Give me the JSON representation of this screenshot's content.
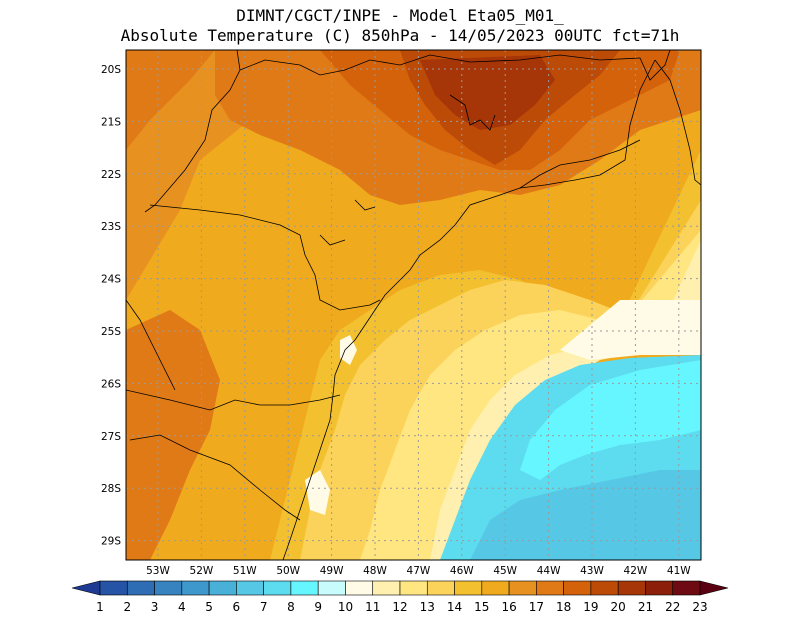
{
  "header": {
    "line1": "DIMNT/CGCT/INPE -  Model Eta05_M01_",
    "line2": "Absolute Temperature (C) 850hPa -  14/05/2023 00UTC fct=71h"
  },
  "axes": {
    "lat_labels": [
      "20S",
      "21S",
      "22S",
      "23S",
      "24S",
      "25S",
      "26S",
      "27S",
      "28S",
      "29S"
    ],
    "lon_labels": [
      "53W",
      "52W",
      "51W",
      "50W",
      "49W",
      "48W",
      "47W",
      "46W",
      "45W",
      "44W",
      "43W",
      "42W",
      "41W"
    ]
  },
  "colorbar": {
    "labels": [
      "1",
      "2",
      "3",
      "4",
      "5",
      "6",
      "7",
      "8",
      "9",
      "10",
      "11",
      "12",
      "13",
      "14",
      "15",
      "16",
      "17",
      "18",
      "19",
      "20",
      "21",
      "22",
      "23"
    ],
    "colors": [
      "#1f3a93",
      "#2553a5",
      "#2e6db4",
      "#3783c0",
      "#3f98cc",
      "#49b1d8",
      "#56c8e6",
      "#5ddcf0",
      "#66f6ff",
      "#c8fbfb",
      "#fffbe6",
      "#fff0b0",
      "#ffe680",
      "#fbd35a",
      "#f3c030",
      "#f0aa1e",
      "#e79121",
      "#e07a16",
      "#d4620b",
      "#bd4b08",
      "#a63507",
      "#8c1f0a",
      "#6e0a12",
      "#5a0010"
    ]
  },
  "map": {
    "bg_color": "#f0aa1e",
    "grid": true
  }
}
